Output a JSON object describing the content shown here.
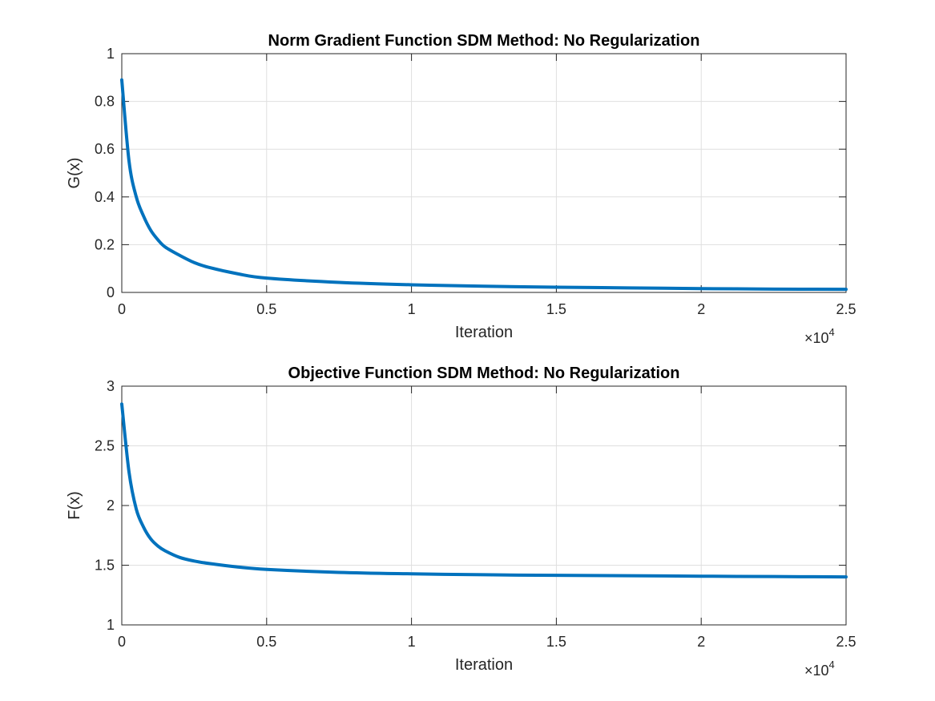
{
  "colors": {
    "series": "#0072BD"
  },
  "chart_data": [
    {
      "type": "line",
      "title": "Norm Gradient Function SDM Method: No Regularization",
      "xlabel": "Iteration",
      "ylabel": "G(x)",
      "x_exponent_label": "×10",
      "x_exponent_power": "4",
      "xlim": [
        0,
        25000
      ],
      "ylim": [
        0,
        1
      ],
      "xticks": [
        0,
        5000,
        10000,
        15000,
        20000,
        25000
      ],
      "xtick_labels": [
        "0",
        "0.5",
        "1",
        "1.5",
        "2",
        "2.5"
      ],
      "yticks": [
        0,
        0.2,
        0.4,
        0.6,
        0.8,
        1
      ],
      "ytick_labels": [
        "0",
        "0.2",
        "0.4",
        "0.6",
        "0.8",
        "1"
      ],
      "grid": true,
      "series": [
        {
          "x": [
            0,
            250,
            500,
            750,
            1000,
            1250,
            1500,
            2000,
            2500,
            3000,
            4000,
            5000,
            7500,
            10000,
            12500,
            15000,
            17500,
            20000,
            22500,
            25000
          ],
          "y": [
            0.89,
            0.55,
            0.4,
            0.32,
            0.26,
            0.22,
            0.19,
            0.155,
            0.125,
            0.105,
            0.078,
            0.06,
            0.042,
            0.032,
            0.026,
            0.022,
            0.019,
            0.016,
            0.014,
            0.013
          ]
        }
      ]
    },
    {
      "type": "line",
      "title": "Objective Function SDM Method: No Regularization",
      "xlabel": "Iteration",
      "ylabel": "F(x)",
      "x_exponent_label": "×10",
      "x_exponent_power": "4",
      "xlim": [
        0,
        25000
      ],
      "ylim": [
        1,
        3
      ],
      "xticks": [
        0,
        5000,
        10000,
        15000,
        20000,
        25000
      ],
      "xtick_labels": [
        "0",
        "0.5",
        "1",
        "1.5",
        "2",
        "2.5"
      ],
      "yticks": [
        1,
        1.5,
        2,
        2.5,
        3
      ],
      "ytick_labels": [
        "1",
        "1.5",
        "2",
        "2.5",
        "3"
      ],
      "grid": true,
      "series": [
        {
          "x": [
            0,
            250,
            500,
            750,
            1000,
            1250,
            1500,
            2000,
            2500,
            3000,
            4000,
            5000,
            7500,
            10000,
            12500,
            15000,
            17500,
            20000,
            22500,
            25000
          ],
          "y": [
            2.85,
            2.28,
            1.97,
            1.82,
            1.72,
            1.66,
            1.62,
            1.565,
            1.535,
            1.515,
            1.485,
            1.465,
            1.44,
            1.428,
            1.42,
            1.415,
            1.412,
            1.408,
            1.405,
            1.402
          ]
        }
      ]
    }
  ]
}
